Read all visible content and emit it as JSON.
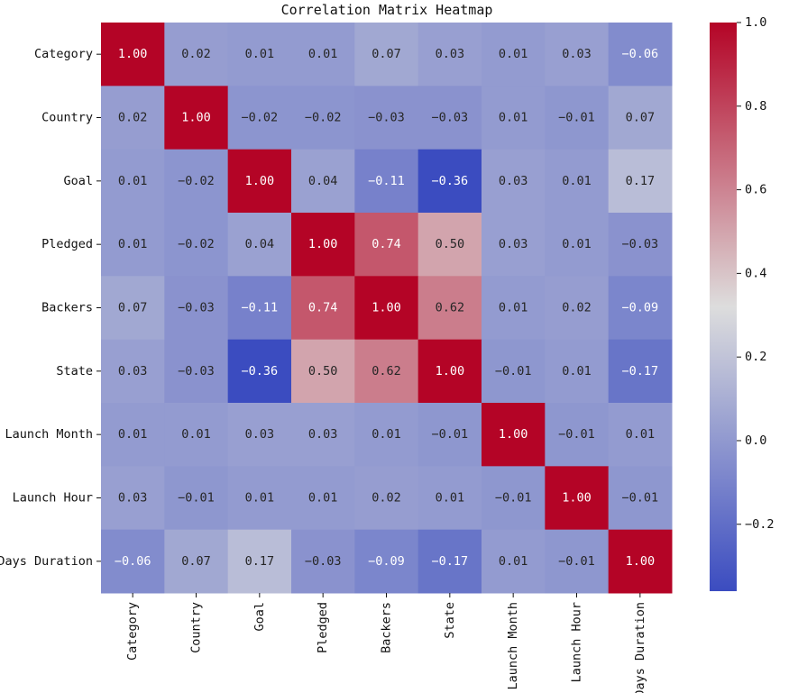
{
  "chart_data": {
    "type": "heatmap",
    "title": "Correlation Matrix Heatmap",
    "variables": [
      "Category",
      "Country",
      "Goal",
      "Pledged",
      "Backers",
      "State",
      "Launch Month",
      "Launch Hour",
      "Days Duration"
    ],
    "values": [
      [
        1.0,
        0.02,
        0.01,
        0.01,
        0.07,
        0.03,
        0.01,
        0.03,
        -0.06
      ],
      [
        0.02,
        1.0,
        -0.02,
        -0.02,
        -0.03,
        -0.03,
        0.01,
        -0.01,
        0.07
      ],
      [
        0.01,
        -0.02,
        1.0,
        0.04,
        -0.11,
        -0.36,
        0.03,
        0.01,
        0.17
      ],
      [
        0.01,
        -0.02,
        0.04,
        1.0,
        0.74,
        0.5,
        0.03,
        0.01,
        -0.03
      ],
      [
        0.07,
        -0.03,
        -0.11,
        0.74,
        1.0,
        0.62,
        0.01,
        0.02,
        -0.09
      ],
      [
        0.03,
        -0.03,
        -0.36,
        0.5,
        0.62,
        1.0,
        -0.01,
        0.01,
        -0.17
      ],
      [
        0.01,
        0.01,
        0.03,
        0.03,
        0.01,
        -0.01,
        1.0,
        -0.01,
        0.01
      ],
      [
        0.03,
        -0.01,
        0.01,
        0.01,
        0.02,
        0.01,
        -0.01,
        1.0,
        -0.01
      ],
      [
        -0.06,
        0.07,
        0.17,
        -0.03,
        -0.09,
        -0.17,
        0.01,
        -0.01,
        1.0
      ]
    ],
    "colormap": "coolwarm",
    "colormap_stops": [
      "#3b4cc0",
      "#dddddd",
      "#b40426"
    ],
    "value_format": "2 decimals",
    "vmin": -0.36,
    "vmax": 1.0,
    "colorbar_ticks": [
      "1.0",
      "0.8",
      "0.6",
      "0.4",
      "0.2",
      "0.0",
      "−0.2"
    ],
    "colorbar_tick_values": [
      1.0,
      0.8,
      0.6,
      0.4,
      0.2,
      0.0,
      -0.2
    ],
    "grid": false,
    "colorbar_position": "right"
  }
}
